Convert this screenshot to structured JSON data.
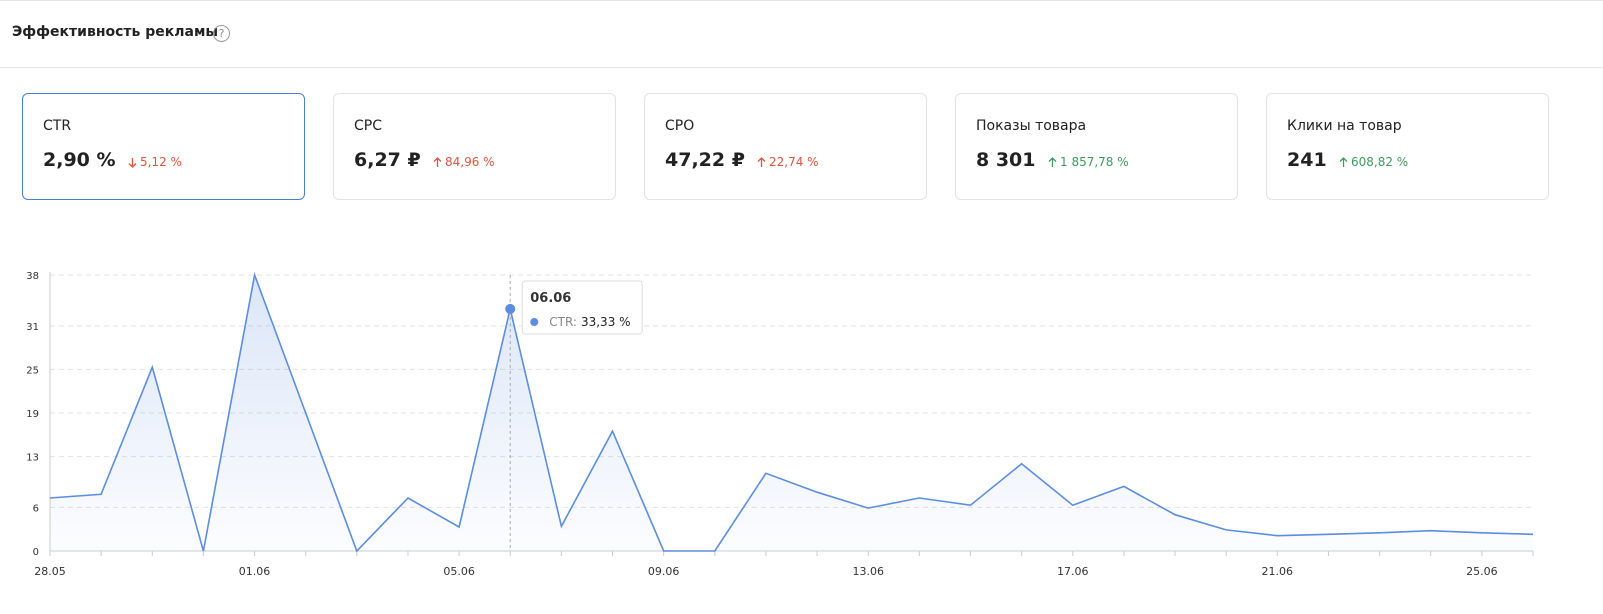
{
  "header": {
    "title": "Эффективность рекламы"
  },
  "cards": [
    {
      "label": "CTR",
      "value": "2,90 %",
      "change": "5,12 %",
      "direction": "down",
      "change_color": "#e0533f",
      "selected": true
    },
    {
      "label": "CPC",
      "value": "6,27 ₽",
      "change": "84,96 %",
      "direction": "up",
      "change_color": "#e0533f",
      "selected": false
    },
    {
      "label": "CPO",
      "value": "47,22 ₽",
      "change": "22,74 %",
      "direction": "up",
      "change_color": "#e0533f",
      "selected": false
    },
    {
      "label": "Показы товара",
      "value": "8 301",
      "change": "1 857,78 %",
      "direction": "up",
      "change_color": "#3f9a5f",
      "selected": false
    },
    {
      "label": "Клики на товар",
      "value": "241",
      "change": "608,82 %",
      "direction": "up",
      "change_color": "#3f9a5f",
      "selected": false
    }
  ],
  "chart_data": {
    "type": "line",
    "color": "#5b8de0",
    "grid": true,
    "categories": [
      "28.05",
      null,
      null,
      null,
      "01.06",
      null,
      null,
      null,
      "05.06",
      "06.06",
      null,
      null,
      "09.06",
      null,
      null,
      null,
      "13.06",
      null,
      null,
      null,
      "17.06",
      null,
      null,
      null,
      "21.06",
      null,
      null,
      null,
      "25.06",
      null
    ],
    "values": [
      7.3,
      7.8,
      25.3,
      0,
      38,
      19,
      0,
      7.3,
      3.3,
      33.33,
      3.4,
      16.5,
      0,
      0,
      10.7,
      8.1,
      5.9,
      7.3,
      6.3,
      12,
      6.3,
      8.9,
      5,
      2.9,
      2.1,
      2.3,
      2.5,
      2.8,
      2.5,
      2.3
    ],
    "ylim": [
      0,
      38
    ],
    "yticks": [
      0,
      6,
      13,
      19,
      25,
      31,
      38
    ],
    "tooltip": {
      "label": "CTR:",
      "value_label": "33,33 %"
    }
  }
}
